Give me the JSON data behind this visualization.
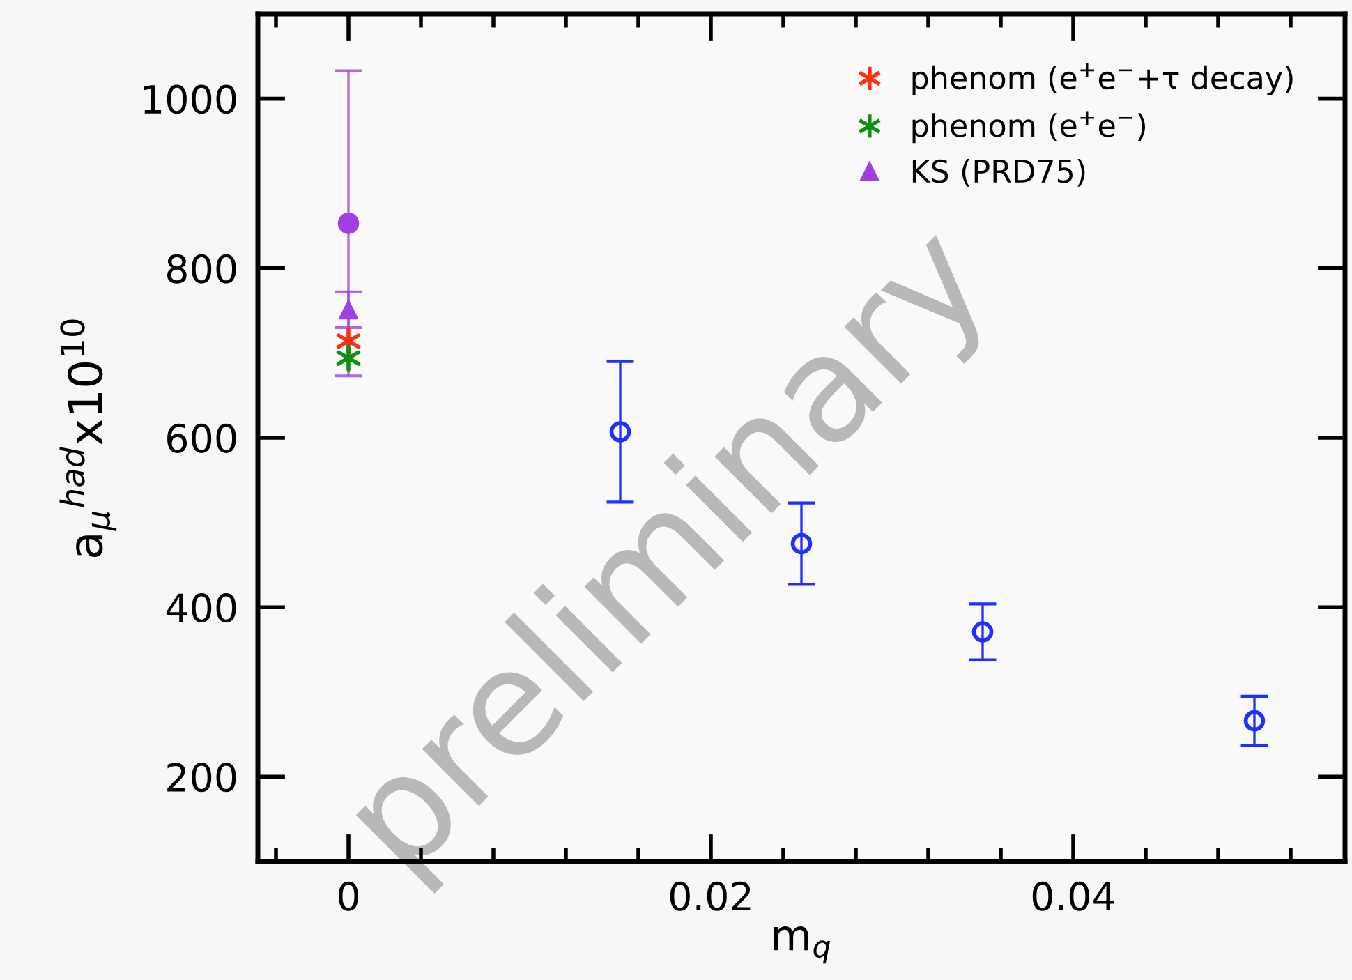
{
  "chart_data": {
    "type": "scatter",
    "xlabel": "m$_{q}$",
    "ylabel": "a$_{μ}$$^{had}$x10$^{10}$",
    "xlim": [
      -0.005,
      0.055
    ],
    "xticks": [
      0,
      0.02,
      0.04
    ],
    "ylim": [
      100,
      1100
    ],
    "yticks": [
      200,
      400,
      600,
      800,
      1000
    ],
    "grid": false,
    "legend": "top right",
    "annotations": [
      "preliminary"
    ],
    "series": [
      {
        "x": [
          0.015,
          0.025,
          0.035,
          0.05
        ],
        "values": [
          607,
          475,
          371,
          266
        ],
        "errors": [
          83,
          48,
          33,
          29
        ],
        "color": "#1f2fff",
        "marker": "circle"
      },
      {
        "x": [
          0
        ],
        "values": [
          853
        ],
        "errors": [
          180
        ],
        "color": "#a040e0",
        "marker": "circle"
      },
      {
        "name": "phenom (e$^{+}$e$^{−}$+τ decay)",
        "x": [
          0
        ],
        "values": [
          714
        ],
        "color": "#ff3010",
        "marker": "cross"
      },
      {
        "name": "phenom (e$^{+}$e$^{−}$)",
        "x": [
          0
        ],
        "values": [
          694
        ],
        "color": "#109010",
        "marker": "cross"
      },
      {
        "name": "KS (PRD75)",
        "x": [
          0
        ],
        "values": [
          751
        ],
        "errors": [
          21
        ],
        "color": "#a040e0",
        "marker": "triangle"
      }
    ]
  }
}
